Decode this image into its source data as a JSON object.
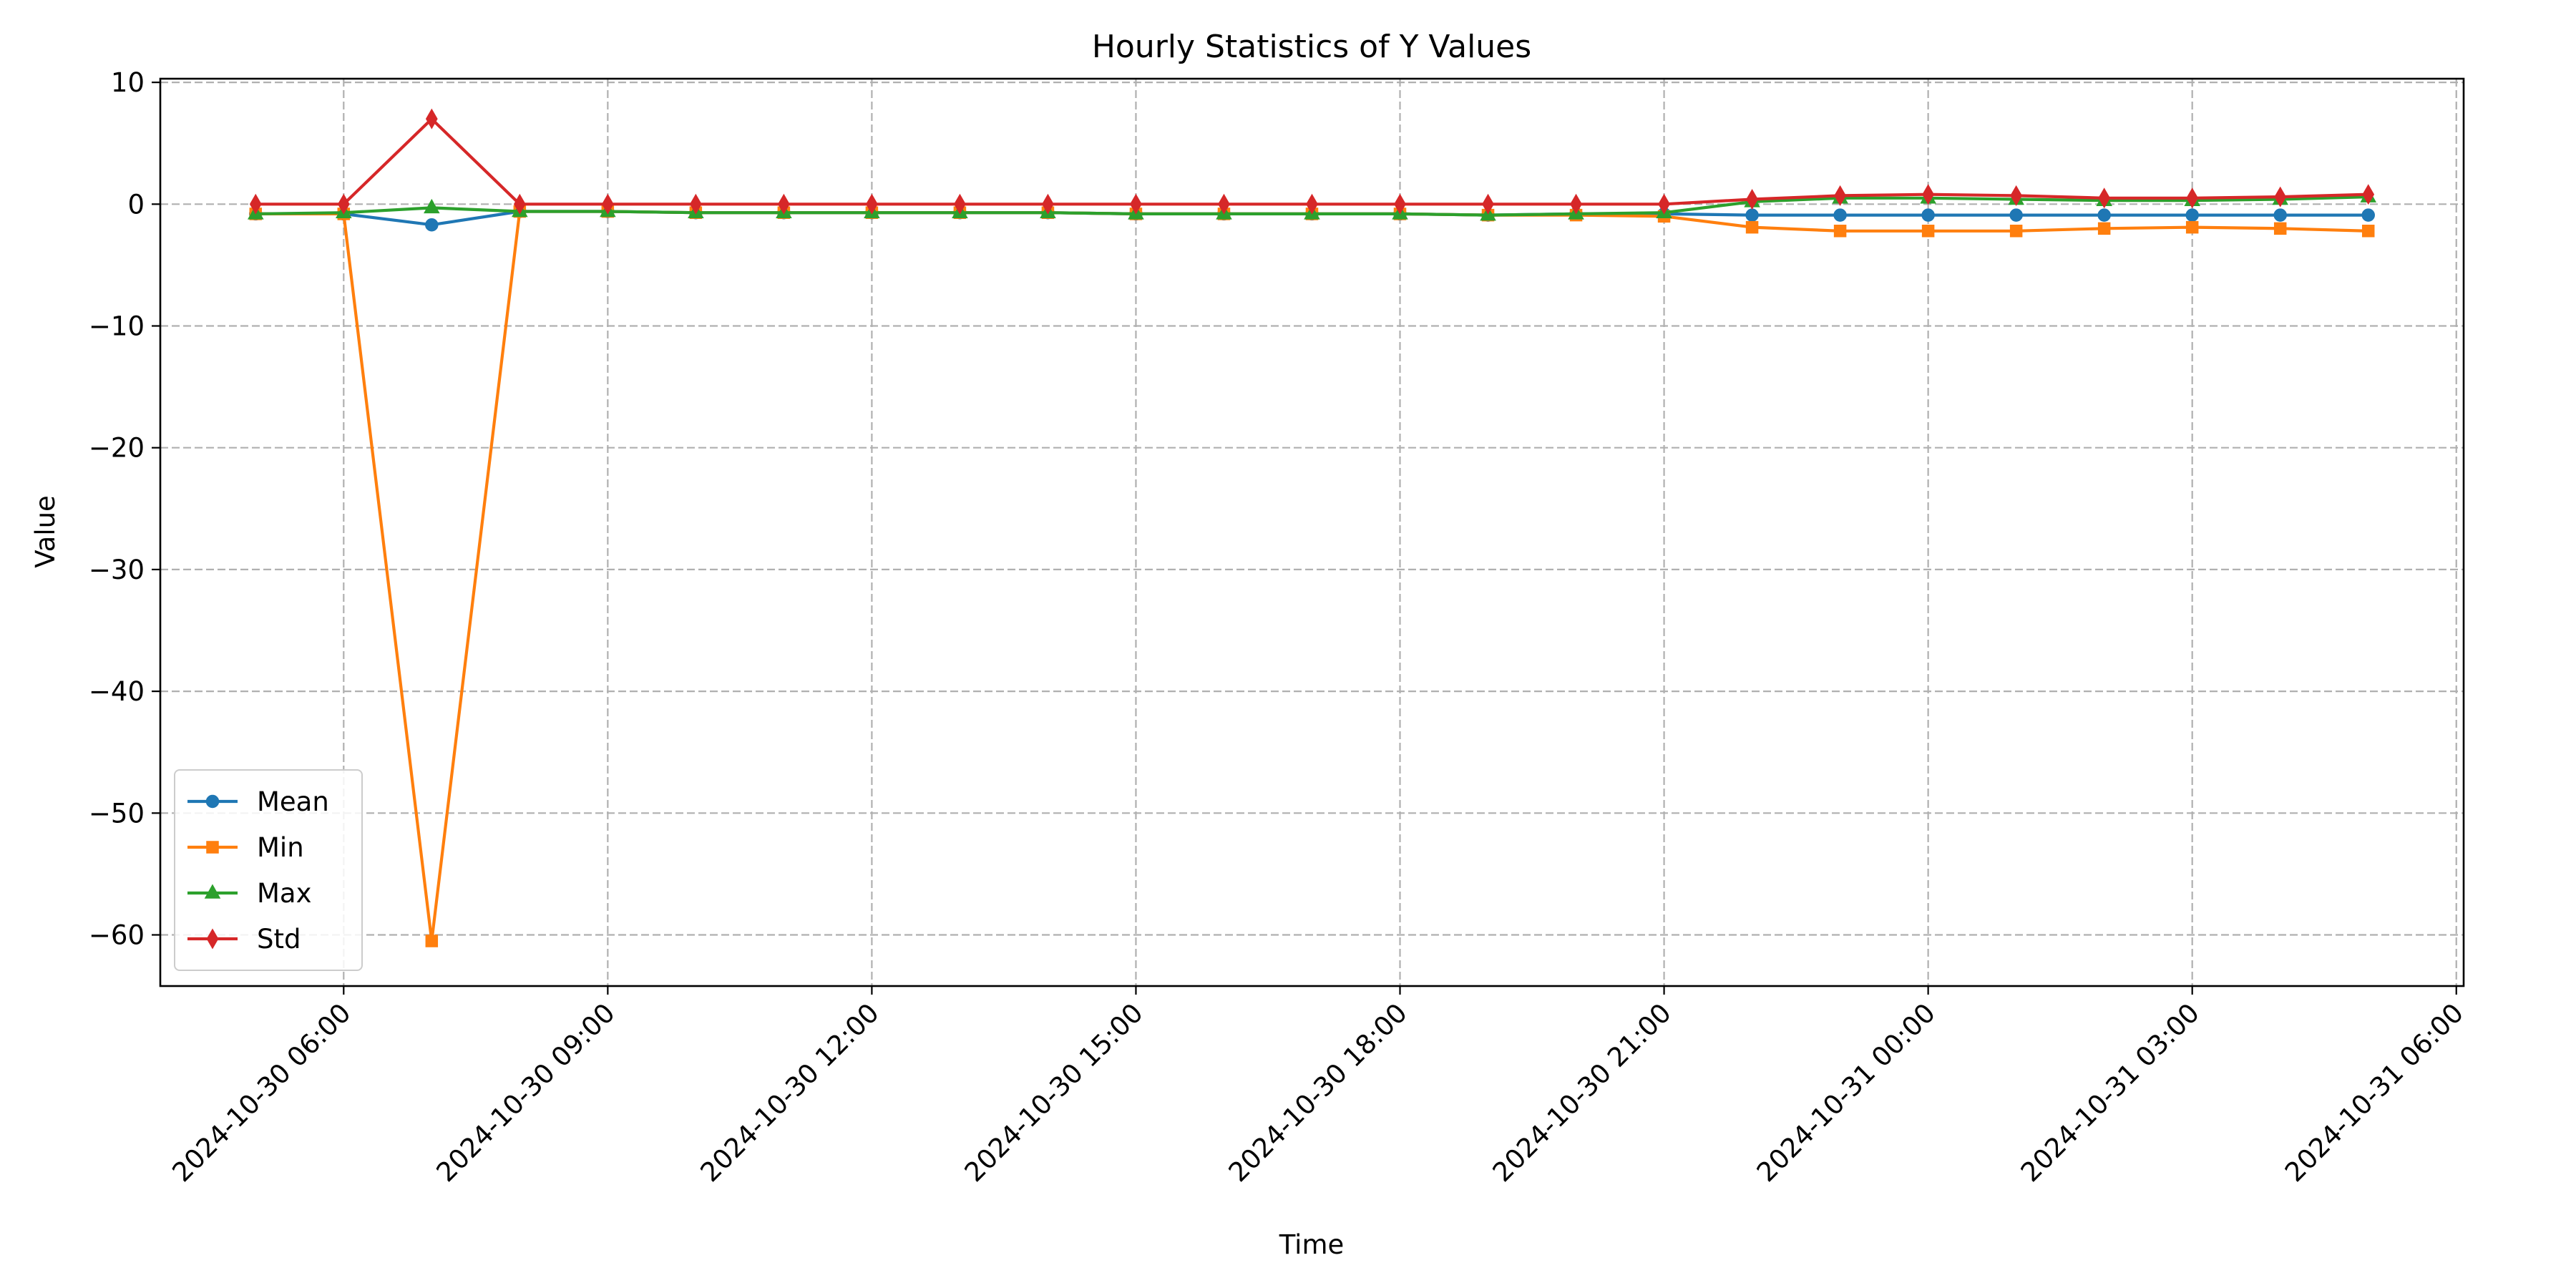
{
  "chart_data": {
    "type": "line",
    "title": "Hourly Statistics of Y Values",
    "xlabel": "Time",
    "ylabel": "Value",
    "x": [
      "2024-10-30 05:00",
      "2024-10-30 06:00",
      "2024-10-30 07:00",
      "2024-10-30 08:00",
      "2024-10-30 09:00",
      "2024-10-30 10:00",
      "2024-10-30 11:00",
      "2024-10-30 12:00",
      "2024-10-30 13:00",
      "2024-10-30 14:00",
      "2024-10-30 15:00",
      "2024-10-30 16:00",
      "2024-10-30 17:00",
      "2024-10-30 18:00",
      "2024-10-30 19:00",
      "2024-10-30 20:00",
      "2024-10-30 21:00",
      "2024-10-30 22:00",
      "2024-10-30 23:00",
      "2024-10-31 00:00",
      "2024-10-31 01:00",
      "2024-10-31 02:00",
      "2024-10-31 03:00",
      "2024-10-31 04:00",
      "2024-10-31 05:00"
    ],
    "xlim": [
      "2024-10-30 03:55",
      "2024-10-31 06:05"
    ],
    "ylim": [
      -64.2,
      10.3
    ],
    "x_ticks": [
      "2024-10-30 06:00",
      "2024-10-30 09:00",
      "2024-10-30 12:00",
      "2024-10-30 15:00",
      "2024-10-30 18:00",
      "2024-10-30 21:00",
      "2024-10-31 00:00",
      "2024-10-31 03:00",
      "2024-10-31 06:00"
    ],
    "y_ticks": [
      10,
      0,
      -10,
      -20,
      -30,
      -40,
      -50,
      -60
    ],
    "y_tick_labels": [
      "10",
      "0",
      "−10",
      "−20",
      "−30",
      "−40",
      "−50",
      "−60"
    ],
    "grid": true,
    "legend_position": "lower-left",
    "series": [
      {
        "name": "Mean",
        "color": "#1f77b4",
        "marker": "circle",
        "values": [
          -0.8,
          -0.8,
          -1.7,
          -0.6,
          -0.6,
          -0.7,
          -0.7,
          -0.7,
          -0.7,
          -0.7,
          -0.8,
          -0.8,
          -0.8,
          -0.8,
          -0.9,
          -0.8,
          -0.8,
          -0.9,
          -0.9,
          -0.9,
          -0.9,
          -0.9,
          -0.9,
          -0.9,
          -0.9
        ]
      },
      {
        "name": "Min",
        "color": "#ff7f0e",
        "marker": "square",
        "values": [
          -0.8,
          -0.8,
          -60.5,
          -0.6,
          -0.6,
          -0.7,
          -0.7,
          -0.7,
          -0.7,
          -0.7,
          -0.8,
          -0.8,
          -0.8,
          -0.8,
          -0.9,
          -0.9,
          -1.0,
          -1.9,
          -2.2,
          -2.2,
          -2.2,
          -2.0,
          -1.9,
          -2.0,
          -2.2
        ]
      },
      {
        "name": "Max",
        "color": "#2ca02c",
        "marker": "triangle",
        "values": [
          -0.8,
          -0.7,
          -0.3,
          -0.6,
          -0.6,
          -0.7,
          -0.7,
          -0.7,
          -0.7,
          -0.7,
          -0.8,
          -0.8,
          -0.8,
          -0.8,
          -0.9,
          -0.8,
          -0.7,
          0.2,
          0.5,
          0.5,
          0.4,
          0.3,
          0.3,
          0.4,
          0.6
        ]
      },
      {
        "name": "Std",
        "color": "#d62728",
        "marker": "diamond",
        "values": [
          0.0,
          0.0,
          7.0,
          0.0,
          0.0,
          0.0,
          0.0,
          0.0,
          0.0,
          0.0,
          0.0,
          0.0,
          0.0,
          0.0,
          0.0,
          0.0,
          0.0,
          0.4,
          0.7,
          0.8,
          0.7,
          0.5,
          0.5,
          0.6,
          0.8
        ]
      }
    ]
  }
}
